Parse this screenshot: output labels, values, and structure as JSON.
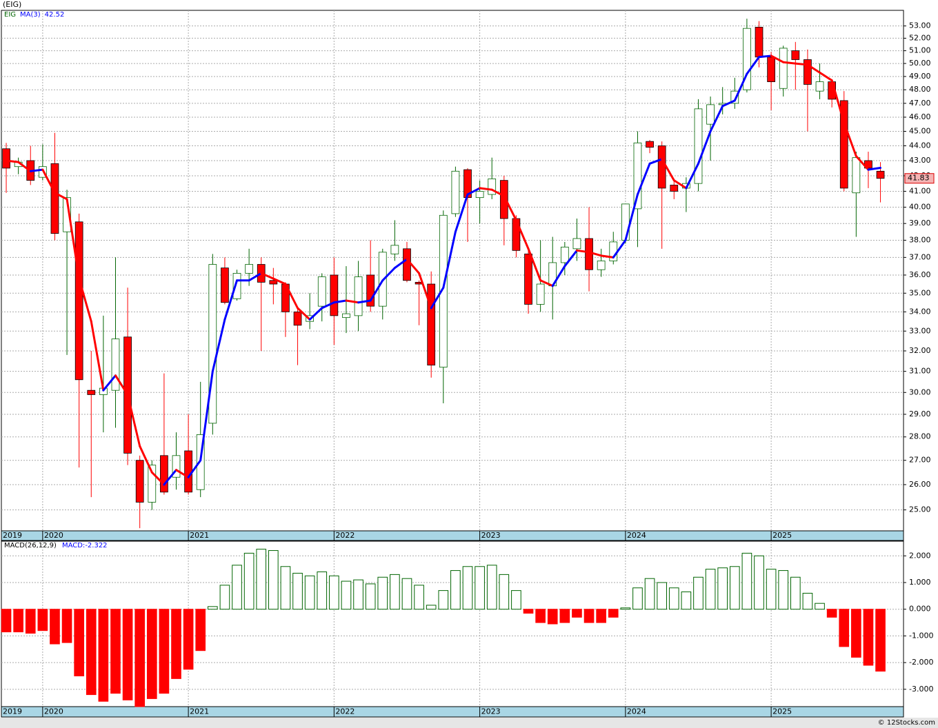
{
  "title": "(EIG)",
  "footer": "© 12Stocks.com",
  "chart_data": [
    {
      "type": "candlestick",
      "name": "EIG",
      "log_scale": true,
      "grid": true,
      "up_color": "#006400",
      "down_color": "#ff0000",
      "open": [
        43.8,
        42.6,
        43.0,
        41.9,
        42.8,
        38.5,
        39.1,
        30.1,
        29.9,
        30.1,
        32.7,
        27.0,
        25.3,
        27.2,
        26.3,
        27.4,
        25.8,
        28.6,
        36.4,
        34.7,
        36.1,
        36.6,
        35.7,
        35.5,
        34.0,
        33.5,
        34.3,
        36.0,
        33.7,
        33.8,
        36.0,
        34.3,
        37.2,
        37.5,
        35.6,
        35.5,
        31.2,
        39.6,
        42.4,
        40.6,
        40.8,
        41.7,
        39.3,
        37.2,
        34.4,
        35.4,
        36.7,
        37.5,
        38.1,
        36.3,
        36.8,
        38.0,
        39.9,
        44.3,
        44.0,
        41.4,
        41.2,
        41.5,
        45.5,
        46.9,
        47.0,
        48.0,
        52.9,
        50.5,
        48.1,
        51.0,
        50.3,
        47.9,
        48.6,
        47.2,
        40.9,
        43.0,
        42.3
      ],
      "high": [
        44.2,
        43.2,
        44.0,
        44.1,
        44.9,
        41.1,
        39.6,
        32.0,
        33.8,
        37.0,
        35.3,
        27.2,
        27.0,
        30.9,
        28.2,
        29.0,
        30.5,
        37.2,
        37.0,
        36.3,
        37.5,
        37.0,
        36.4,
        35.6,
        34.2,
        35.0,
        36.1,
        37.0,
        36.5,
        36.8,
        38.0,
        37.5,
        39.2,
        37.9,
        35.7,
        36.2,
        39.8,
        42.6,
        42.5,
        41.7,
        43.2,
        42.0,
        39.5,
        37.4,
        38.0,
        38.2,
        37.9,
        39.3,
        40.0,
        37.5,
        38.5,
        40.2,
        45.0,
        44.4,
        44.3,
        41.8,
        41.9,
        47.3,
        47.5,
        48.2,
        48.9,
        53.6,
        53.4,
        50.9,
        51.4,
        51.7,
        51.1,
        50.0,
        48.8,
        47.9,
        43.6,
        43.6,
        42.9
      ],
      "low": [
        40.9,
        42.1,
        41.4,
        41.7,
        38.0,
        31.8,
        26.7,
        25.5,
        28.2,
        28.4,
        26.8,
        24.3,
        25.0,
        25.6,
        25.8,
        25.6,
        25.5,
        28.1,
        34.4,
        34.6,
        35.4,
        32.0,
        34.4,
        32.7,
        31.3,
        33.1,
        33.5,
        32.3,
        32.9,
        33.0,
        34.0,
        33.6,
        36.8,
        35.6,
        33.3,
        30.7,
        29.5,
        39.4,
        37.9,
        39.0,
        40.5,
        37.7,
        37.0,
        33.9,
        34.0,
        33.6,
        36.0,
        36.8,
        35.1,
        35.9,
        36.6,
        37.8,
        37.6,
        43.5,
        37.5,
        40.5,
        39.7,
        41.0,
        43.0,
        46.2,
        46.6,
        47.8,
        49.7,
        46.5,
        47.5,
        48.0,
        45.0,
        47.3,
        46.7,
        41.0,
        38.2,
        41.2,
        40.3
      ],
      "close": [
        42.5,
        42.9,
        41.7,
        42.6,
        38.4,
        40.6,
        30.6,
        29.9,
        30.2,
        32.6,
        27.3,
        25.3,
        26.8,
        25.7,
        27.2,
        25.7,
        28.1,
        36.6,
        34.5,
        36.1,
        36.6,
        35.6,
        35.5,
        34.0,
        33.3,
        33.8,
        35.9,
        33.8,
        33.9,
        35.9,
        34.3,
        37.3,
        37.7,
        35.7,
        35.5,
        31.3,
        39.5,
        42.3,
        40.6,
        41.0,
        41.8,
        39.3,
        37.4,
        34.4,
        35.5,
        36.7,
        37.6,
        38.1,
        36.3,
        36.8,
        37.9,
        40.2,
        44.2,
        43.9,
        41.2,
        41.0,
        41.5,
        46.6,
        46.9,
        47.0,
        47.9,
        52.8,
        50.5,
        48.6,
        51.2,
        50.3,
        48.4,
        48.6,
        47.3,
        41.2,
        43.2,
        42.5,
        41.83
      ],
      "series": [
        {
          "name": "MA(3)",
          "up_color": "#0000ff",
          "down_color": "#ff0000",
          "values": [
            43.0,
            42.9,
            42.3,
            42.4,
            40.9,
            40.5,
            35.8,
            33.5,
            30.1,
            30.8,
            29.9,
            27.6,
            26.5,
            26.0,
            26.6,
            26.3,
            27.0,
            31.0,
            33.6,
            35.7,
            35.7,
            36.1,
            35.8,
            35.5,
            34.2,
            33.6,
            34.2,
            34.5,
            34.6,
            34.5,
            34.6,
            35.7,
            36.4,
            36.9,
            36.1,
            34.2,
            35.3,
            38.5,
            40.8,
            41.2,
            41.1,
            40.7,
            39.2,
            37.5,
            35.7,
            35.4,
            36.5,
            37.4,
            37.3,
            37.1,
            37.0,
            38.0,
            40.8,
            42.8,
            43.1,
            41.7,
            41.2,
            42.8,
            45.0,
            46.8,
            47.2,
            49.2,
            50.5,
            50.6,
            50.1,
            50.0,
            49.9,
            49.3,
            48.7,
            45.6,
            43.3,
            42.4,
            42.52
          ]
        }
      ],
      "xlim": [
        -0.4,
        73.9
      ],
      "xticks": [
        {
          "value": -0.4,
          "label": "2019"
        },
        {
          "value": 3,
          "label": "2020"
        },
        {
          "value": 15,
          "label": "2021"
        },
        {
          "value": 27,
          "label": "2022"
        },
        {
          "value": 39,
          "label": "2023"
        },
        {
          "value": 51,
          "label": "2024"
        },
        {
          "value": 63,
          "label": "2025"
        }
      ],
      "ylim": [
        24.2,
        54.3
      ],
      "yticks": [
        {
          "value": 25,
          "label": "25.00"
        },
        {
          "value": 26,
          "label": "26.00"
        },
        {
          "value": 27,
          "label": "27.00"
        },
        {
          "value": 28,
          "label": "28.00"
        },
        {
          "value": 29,
          "label": "29.00"
        },
        {
          "value": 30,
          "label": "30.00"
        },
        {
          "value": 31,
          "label": "31.00"
        },
        {
          "value": 32,
          "label": "32.00"
        },
        {
          "value": 33,
          "label": "33.00"
        },
        {
          "value": 34,
          "label": "34.00"
        },
        {
          "value": 35,
          "label": "35.00"
        },
        {
          "value": 36,
          "label": "36.00"
        },
        {
          "value": 37,
          "label": "37.00"
        },
        {
          "value": 38,
          "label": "38.00"
        },
        {
          "value": 39,
          "label": "39.00"
        },
        {
          "value": 40,
          "label": "40.00"
        },
        {
          "value": 41,
          "label": "41.00"
        },
        {
          "value": 42,
          "label": "42.00"
        },
        {
          "value": 43,
          "label": "43.00"
        },
        {
          "value": 44,
          "label": "44.00"
        },
        {
          "value": 45,
          "label": "45.00"
        },
        {
          "value": 46,
          "label": "46.00"
        },
        {
          "value": 47,
          "label": "47.00"
        },
        {
          "value": 48,
          "label": "48.00"
        },
        {
          "value": 49,
          "label": "49.00"
        },
        {
          "value": 50,
          "label": "50.00"
        },
        {
          "value": 51,
          "label": "51.00"
        },
        {
          "value": 52,
          "label": "52.00"
        },
        {
          "value": 53,
          "label": "53.00"
        }
      ]
    },
    {
      "type": "bar",
      "name": "MACD(26,12,9)",
      "value_name": "MACD:",
      "grid": true,
      "up_color": "#006400",
      "down_color": "#ff0000",
      "values": [
        -0.85,
        -0.85,
        -0.9,
        -0.8,
        -1.3,
        -1.25,
        -2.5,
        -3.2,
        -3.45,
        -3.15,
        -3.4,
        -3.65,
        -3.35,
        -3.15,
        -2.6,
        -2.25,
        -1.55,
        0.1,
        0.9,
        1.65,
        2.1,
        2.25,
        2.2,
        1.6,
        1.35,
        1.25,
        1.4,
        1.25,
        1.05,
        1.1,
        0.95,
        1.2,
        1.3,
        1.15,
        0.9,
        0.15,
        0.7,
        1.45,
        1.6,
        1.6,
        1.65,
        1.3,
        0.7,
        -0.15,
        -0.5,
        -0.55,
        -0.5,
        -0.3,
        -0.5,
        -0.5,
        -0.3,
        0.05,
        0.8,
        1.15,
        1.0,
        0.8,
        0.65,
        1.2,
        1.5,
        1.55,
        1.6,
        2.1,
        2.0,
        1.5,
        1.45,
        1.2,
        0.6,
        0.22,
        -0.3,
        -1.4,
        -1.8,
        -2.1,
        -2.322
      ],
      "xlim": [
        -0.4,
        73.9
      ],
      "xticks": [
        {
          "value": -0.4,
          "label": "2019"
        },
        {
          "value": 3,
          "label": "2020"
        },
        {
          "value": 15,
          "label": "2021"
        },
        {
          "value": 27,
          "label": "2022"
        },
        {
          "value": 39,
          "label": "2023"
        },
        {
          "value": 51,
          "label": "2024"
        },
        {
          "value": 63,
          "label": "2025"
        }
      ],
      "ylim": [
        -3.65,
        2.55
      ],
      "yticks": [
        {
          "value": -3,
          "label": "-3.000"
        },
        {
          "value": -2,
          "label": "-2.000"
        },
        {
          "value": -1,
          "label": "-1.000"
        },
        {
          "value": 0,
          "label": "0.000"
        },
        {
          "value": 1,
          "label": "1.000"
        },
        {
          "value": 2,
          "label": "2.000"
        }
      ]
    }
  ]
}
